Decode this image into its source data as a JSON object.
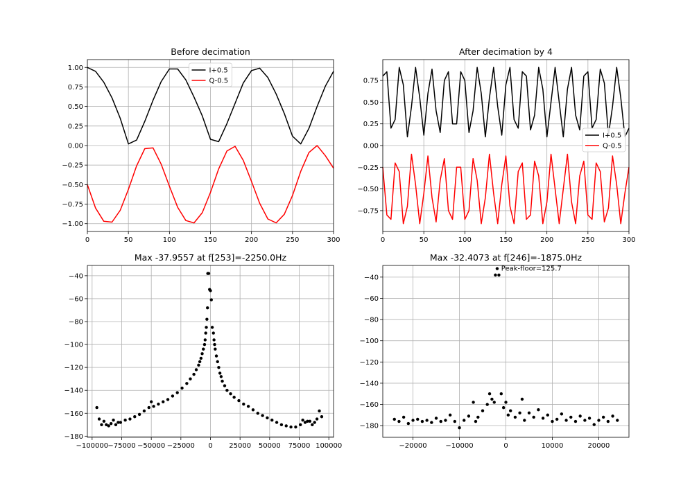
{
  "chart_data": [
    {
      "type": "line",
      "title": "Before decimation",
      "xlabel": "",
      "ylabel": "",
      "xlim": [
        0,
        300
      ],
      "ylim": [
        -1.1,
        1.1
      ],
      "xticks": [
        0,
        50,
        100,
        150,
        200,
        250,
        300
      ],
      "xtick_labels": [
        "0",
        "50",
        "100",
        "150",
        "200",
        "250",
        "300"
      ],
      "yticks": [
        -1.0,
        -0.75,
        -0.5,
        -0.25,
        0.0,
        0.25,
        0.5,
        0.75,
        1.0
      ],
      "ytick_labels": [
        "−1.00",
        "−0.75",
        "−0.50",
        "−0.25",
        "0.00",
        "0.25",
        "0.50",
        "0.75",
        "1.00"
      ],
      "grid": true,
      "legend_position": "top-center",
      "series": [
        {
          "name": "I+0.5",
          "color": "#000000",
          "x": [
            0,
            10,
            20,
            30,
            40,
            50,
            60,
            70,
            80,
            90,
            100,
            110,
            120,
            130,
            140,
            150,
            160,
            170,
            180,
            190,
            200,
            210,
            220,
            230,
            240,
            250,
            260,
            270,
            280,
            290,
            300
          ],
          "y": [
            1.0,
            0.95,
            0.81,
            0.61,
            0.35,
            0.02,
            0.07,
            0.31,
            0.58,
            0.82,
            0.98,
            0.98,
            0.84,
            0.62,
            0.38,
            0.08,
            0.05,
            0.28,
            0.54,
            0.8,
            0.96,
            0.99,
            0.87,
            0.66,
            0.41,
            0.12,
            0.02,
            0.22,
            0.5,
            0.76,
            0.95
          ]
        },
        {
          "name": "Q-0.5",
          "color": "#ff0000",
          "x": [
            0,
            10,
            20,
            30,
            40,
            50,
            60,
            70,
            80,
            90,
            100,
            110,
            120,
            130,
            140,
            150,
            160,
            170,
            180,
            190,
            200,
            210,
            220,
            230,
            240,
            250,
            260,
            270,
            280,
            290,
            300
          ],
          "y": [
            -0.5,
            -0.8,
            -0.97,
            -0.98,
            -0.83,
            -0.56,
            -0.26,
            -0.04,
            -0.03,
            -0.24,
            -0.52,
            -0.79,
            -0.96,
            -0.99,
            -0.86,
            -0.6,
            -0.3,
            -0.07,
            -0.01,
            -0.19,
            -0.46,
            -0.74,
            -0.94,
            -0.99,
            -0.88,
            -0.64,
            -0.33,
            -0.09,
            -0.0,
            -0.13,
            -0.29
          ]
        }
      ]
    },
    {
      "type": "line",
      "title": "After decimation by 4",
      "xlabel": "",
      "ylabel": "",
      "xlim": [
        0,
        300
      ],
      "ylim": [
        -0.99,
        0.99
      ],
      "xticks": [
        0,
        50,
        100,
        150,
        200,
        250,
        300
      ],
      "xtick_labels": [
        "0",
        "50",
        "100",
        "150",
        "200",
        "250",
        "300"
      ],
      "yticks": [
        -0.75,
        -0.5,
        -0.25,
        0.0,
        0.25,
        0.5,
        0.75
      ],
      "ytick_labels": [
        "−0.75",
        "−0.50",
        "−0.25",
        "0.00",
        "0.25",
        "0.50",
        "0.75"
      ],
      "grid": true,
      "legend_position": "center-right",
      "series": [
        {
          "name": "I+0.5",
          "color": "#000000",
          "x": [
            0,
            5,
            10,
            15,
            20,
            25,
            30,
            35,
            40,
            45,
            50,
            55,
            60,
            65,
            70,
            75,
            80,
            85,
            90,
            95,
            100,
            105,
            110,
            115,
            120,
            125,
            130,
            135,
            140,
            145,
            150,
            155,
            160,
            165,
            170,
            175,
            180,
            185,
            190,
            195,
            200,
            205,
            210,
            215,
            220,
            225,
            230,
            235,
            240,
            245,
            250,
            255,
            260,
            265,
            270,
            275,
            280,
            285,
            290,
            295,
            300
          ],
          "y": [
            0.8,
            0.85,
            0.2,
            0.3,
            0.9,
            0.7,
            0.1,
            0.45,
            0.9,
            0.55,
            0.12,
            0.6,
            0.88,
            0.4,
            0.15,
            0.75,
            0.85,
            0.25,
            0.25,
            0.85,
            0.75,
            0.15,
            0.4,
            0.9,
            0.6,
            0.1,
            0.55,
            0.9,
            0.45,
            0.12,
            0.7,
            0.9,
            0.3,
            0.2,
            0.85,
            0.8,
            0.18,
            0.35,
            0.9,
            0.65,
            0.1,
            0.5,
            0.9,
            0.5,
            0.1,
            0.65,
            0.9,
            0.35,
            0.18,
            0.8,
            0.85,
            0.2,
            0.3,
            0.88,
            0.72,
            0.12,
            0.45,
            0.9,
            0.55,
            0.1,
            0.2
          ]
        },
        {
          "name": "Q-0.5",
          "color": "#ff0000",
          "x": [
            0,
            5,
            10,
            15,
            20,
            25,
            30,
            35,
            40,
            45,
            50,
            55,
            60,
            65,
            70,
            75,
            80,
            85,
            90,
            95,
            100,
            105,
            110,
            115,
            120,
            125,
            130,
            135,
            140,
            145,
            150,
            155,
            160,
            165,
            170,
            175,
            180,
            185,
            190,
            195,
            200,
            205,
            210,
            215,
            220,
            225,
            230,
            235,
            240,
            245,
            250,
            255,
            260,
            265,
            270,
            275,
            280,
            285,
            290,
            295,
            300
          ],
          "y": [
            -0.25,
            -0.8,
            -0.85,
            -0.2,
            -0.3,
            -0.9,
            -0.7,
            -0.1,
            -0.45,
            -0.9,
            -0.55,
            -0.12,
            -0.6,
            -0.88,
            -0.4,
            -0.15,
            -0.75,
            -0.85,
            -0.25,
            -0.25,
            -0.85,
            -0.75,
            -0.15,
            -0.4,
            -0.9,
            -0.6,
            -0.1,
            -0.55,
            -0.9,
            -0.45,
            -0.12,
            -0.7,
            -0.9,
            -0.3,
            -0.2,
            -0.85,
            -0.8,
            -0.18,
            -0.35,
            -0.9,
            -0.65,
            -0.1,
            -0.5,
            -0.9,
            -0.5,
            -0.1,
            -0.65,
            -0.9,
            -0.35,
            -0.18,
            -0.8,
            -0.85,
            -0.2,
            -0.3,
            -0.88,
            -0.72,
            -0.12,
            -0.45,
            -0.9,
            -0.55,
            -0.25
          ]
        }
      ]
    },
    {
      "type": "scatter",
      "title": "Max -37.9557 at f[253]=-2250.0Hz",
      "xlabel": "",
      "ylabel": "",
      "xlim": [
        -104000,
        104000
      ],
      "ylim": [
        -181,
        -31
      ],
      "xticks": [
        -100000,
        -75000,
        -50000,
        -25000,
        0,
        25000,
        50000,
        75000,
        100000
      ],
      "xtick_labels": [
        "−100000",
        "−75000",
        "−50000",
        "−25000",
        "0",
        "25000",
        "50000",
        "75000",
        "100000"
      ],
      "yticks": [
        -180,
        -160,
        -140,
        -120,
        -100,
        -80,
        -60,
        -40
      ],
      "ytick_labels": [
        "−180",
        "−160",
        "−140",
        "−120",
        "−100",
        "−80",
        "−60",
        "−40"
      ],
      "grid": true,
      "series": [
        {
          "color": "#000000",
          "x": [
            -96000,
            -94000,
            -92000,
            -90000,
            -88000,
            -86000,
            -84000,
            -82000,
            -80000,
            -78000,
            -76000,
            -72000,
            -68000,
            -64000,
            -60000,
            -56000,
            -52000,
            -50000,
            -48000,
            -44000,
            -40000,
            -36000,
            -32000,
            -28000,
            -24000,
            -20000,
            -17000,
            -14000,
            -12000,
            -10000,
            -9000,
            -8000,
            -7000,
            -6000,
            -5000,
            -4500,
            -4000,
            -3500,
            -3000,
            -2500,
            -2250,
            -1500,
            -750,
            0,
            750,
            1500,
            2500,
            3000,
            3500,
            4000,
            5000,
            6000,
            7000,
            8000,
            9000,
            10000,
            12000,
            14000,
            17000,
            20000,
            24000,
            28000,
            32000,
            36000,
            40000,
            44000,
            48000,
            52000,
            56000,
            60000,
            64000,
            68000,
            72000,
            76000,
            78000,
            80000,
            82000,
            84000,
            86000,
            88000,
            90000,
            92000,
            94000
          ],
          "y": [
            -155,
            -165,
            -170,
            -167,
            -170,
            -171,
            -169,
            -166,
            -170,
            -168,
            -168,
            -166,
            -165,
            -163,
            -161,
            -158,
            -155,
            -150,
            -154,
            -152,
            -150,
            -148,
            -145,
            -142,
            -138,
            -134,
            -130,
            -126,
            -122,
            -118,
            -115,
            -112,
            -108,
            -104,
            -100,
            -96,
            -90,
            -85,
            -78,
            -68,
            -38,
            -38,
            -52,
            -53,
            -61,
            -85,
            -90,
            -96,
            -100,
            -104,
            -110,
            -115,
            -120,
            -125,
            -128,
            -132,
            -136,
            -140,
            -143,
            -146,
            -149,
            -152,
            -154,
            -157,
            -160,
            -162,
            -164,
            -166,
            -168,
            -170,
            -171,
            -172,
            -172,
            -170,
            -166,
            -168,
            -167,
            -167,
            -170,
            -168,
            -165,
            -158,
            -163
          ]
        }
      ]
    },
    {
      "type": "scatter",
      "title": "Max -32.4073 at f[246]=-1875.0Hz",
      "xlabel": "",
      "ylabel": "",
      "xlim": [
        -26500,
        26500
      ],
      "ylim": [
        -191,
        -29
      ],
      "xticks": [
        -20000,
        -10000,
        0,
        10000,
        20000
      ],
      "xtick_labels": [
        "−20000",
        "−10000",
        "0",
        "10000",
        "20000"
      ],
      "yticks": [
        -180,
        -160,
        -140,
        -120,
        -100,
        -80,
        -60,
        -40
      ],
      "ytick_labels": [
        "−180",
        "−160",
        "−140",
        "−120",
        "−100",
        "−80",
        "−60",
        "−40"
      ],
      "grid": true,
      "annotation": {
        "text": "Peak-floor=125.7",
        "x": -1000,
        "y": -32
      },
      "series": [
        {
          "color": "#000000",
          "x": [
            -24000,
            -23000,
            -22000,
            -21000,
            -20000,
            -19000,
            -18000,
            -17000,
            -16000,
            -15000,
            -14000,
            -13000,
            -12000,
            -11000,
            -10000,
            -9000,
            -8000,
            -7000,
            -6500,
            -6000,
            -5000,
            -4000,
            -3500,
            -3000,
            -2500,
            -2250,
            -1875,
            -1500,
            -1000,
            -500,
            0,
            500,
            1000,
            2000,
            3000,
            3500,
            4000,
            5000,
            6000,
            7000,
            8000,
            9000,
            10000,
            11000,
            12000,
            13000,
            14000,
            15000,
            16000,
            17000,
            18000,
            19000,
            20000,
            21000,
            22000,
            23000,
            24000
          ],
          "y": [
            -174,
            -176,
            -172,
            -178,
            -175,
            -174,
            -176,
            -175,
            -177,
            -173,
            -176,
            -175,
            -170,
            -176,
            -182,
            -175,
            -171,
            -158,
            -176,
            -172,
            -166,
            -160,
            -150,
            -155,
            -158,
            -38,
            -32,
            -38,
            -150,
            -163,
            -158,
            -170,
            -166,
            -172,
            -168,
            -155,
            -175,
            -168,
            -172,
            -165,
            -173,
            -170,
            -176,
            -174,
            -169,
            -175,
            -172,
            -176,
            -171,
            -175,
            -173,
            -179,
            -175,
            -172,
            -176,
            -171,
            -175
          ]
        }
      ]
    }
  ]
}
